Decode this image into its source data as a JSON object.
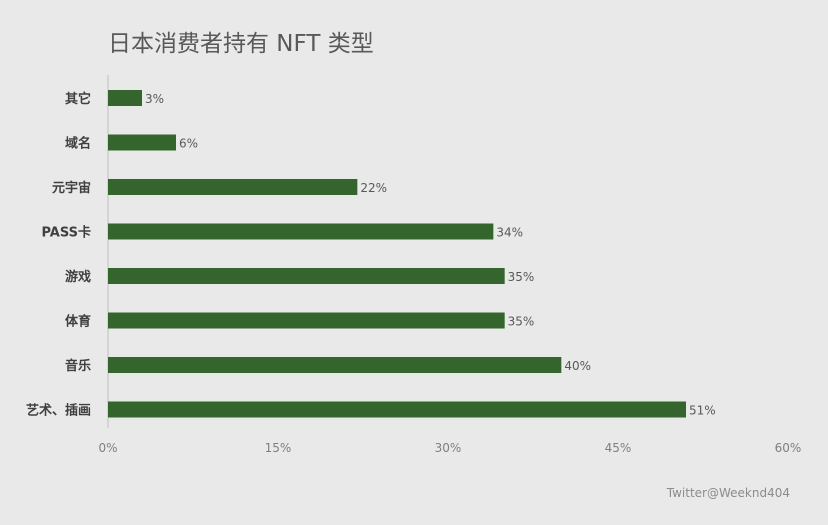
{
  "chart_data": {
    "type": "bar",
    "orientation": "horizontal",
    "title": "日本消费者持有 NFT 类型",
    "categories": [
      "其它",
      "域名",
      "元宇宙",
      "PASS卡",
      "游戏",
      "体育",
      "音乐",
      "艺术、插画"
    ],
    "values": [
      3,
      6,
      22,
      34,
      35,
      35,
      40,
      51
    ],
    "data_labels": [
      "3%",
      "6%",
      "22%",
      "34%",
      "35%",
      "35%",
      "40%",
      "51%"
    ],
    "xlim": [
      0,
      60
    ],
    "x_ticks": [
      0,
      15,
      30,
      45,
      60
    ],
    "x_tick_labels": [
      "0%",
      "15%",
      "30%",
      "45%",
      "60%"
    ],
    "xlabel": "",
    "ylabel": "",
    "grid": false,
    "legend": "none",
    "bar_color": "#34652c"
  },
  "colors": {
    "background": "#e9e9e9",
    "bar": "#34652c",
    "axis": "#bfbfbf",
    "category_text": "#404040",
    "value_text": "#595959",
    "tick_text": "#7f7f7f"
  },
  "credit": "Twitter@Weeknd404"
}
